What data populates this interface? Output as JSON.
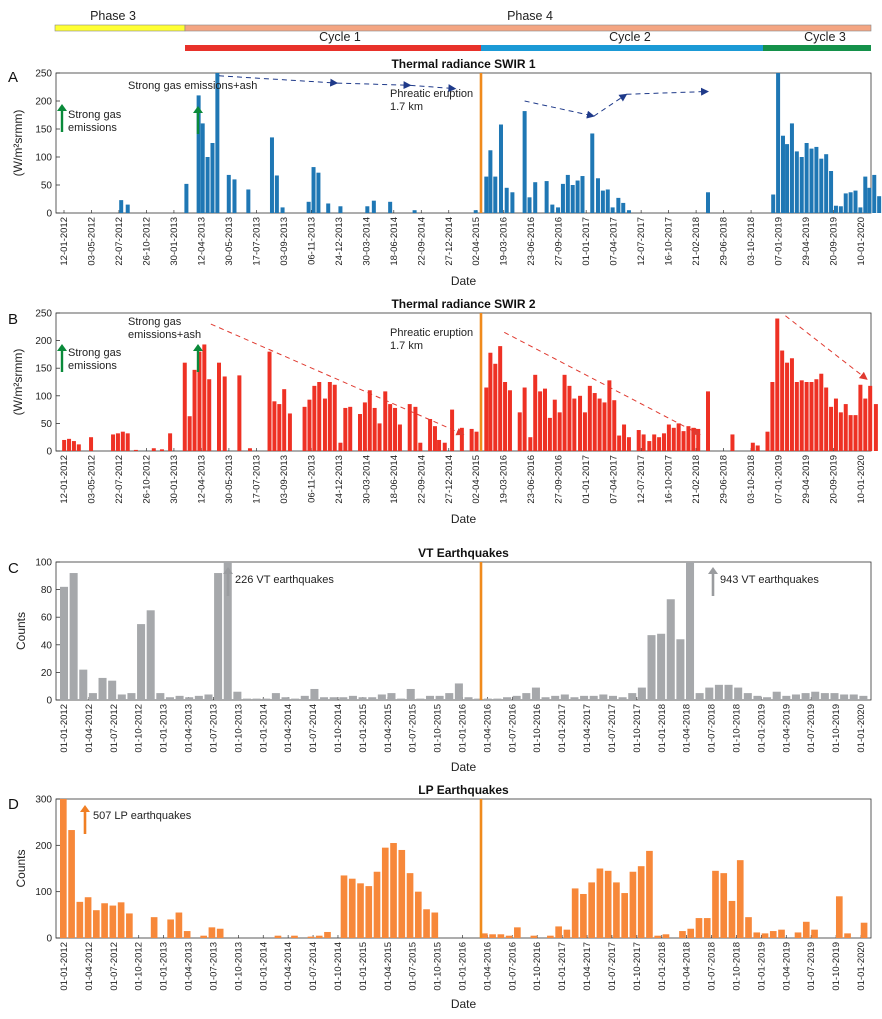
{
  "header": {
    "phases": [
      {
        "label": "Phase 3",
        "color": "#ffff33",
        "from": 0.0,
        "to": 0.155
      },
      {
        "label": "Phase 4",
        "color": "#f4a582",
        "from": 0.155,
        "to": 1.0
      }
    ],
    "cycles": [
      {
        "label": "Cycle 1",
        "color": "#e8312a",
        "from": 0.155,
        "to": 0.52
      },
      {
        "label": "Cycle 2",
        "color": "#1b9ad6",
        "from": 0.52,
        "to": 0.865
      },
      {
        "label": "Cycle 3",
        "color": "#14914a",
        "from": 0.865,
        "to": 1.0
      }
    ]
  },
  "eruption_line": {
    "color": "#f08a1c",
    "label": "Phreatic eruption",
    "label2": "1.7 km"
  },
  "chart_data": [
    {
      "panel": "A",
      "type": "bar",
      "title": "Thermal radiance SWIR 1",
      "xlabel": "Date",
      "ylabel": "(W/m²srmm)",
      "ylim": [
        0,
        250
      ],
      "yticks": [
        0,
        50,
        100,
        150,
        200,
        250
      ],
      "color": "#1f77b4",
      "eruption_position": 0.525,
      "xticks": [
        "12-01-2012",
        "03-05-2012",
        "22-07-2012",
        "26-10-2012",
        "30-01-2013",
        "12-04-2013",
        "30-05-2013",
        "17-07-2013",
        "03-09-2013",
        "06-11-2013",
        "24-12-2013",
        "30-03-2014",
        "18-06-2014",
        "22-09-2014",
        "27-12-2014",
        "02-04-2015",
        "19-03-2016",
        "23-06-2016",
        "27-09-2016",
        "01-01-2017",
        "07-04-2017",
        "12-07-2017",
        "16-10-2017",
        "21-02-2018",
        "29-06-2018",
        "03-10-2018",
        "07-01-2019",
        "29-04-2019",
        "20-09-2019",
        "10-01-2020"
      ],
      "bars": [
        [
          0.08,
          23
        ],
        [
          0.088,
          15
        ],
        [
          0.16,
          52
        ],
        [
          0.175,
          210
        ],
        [
          0.18,
          160
        ],
        [
          0.186,
          100
        ],
        [
          0.192,
          125
        ],
        [
          0.198,
          250
        ],
        [
          0.212,
          68
        ],
        [
          0.219,
          60
        ],
        [
          0.236,
          42
        ],
        [
          0.265,
          135
        ],
        [
          0.271,
          67
        ],
        [
          0.278,
          10
        ],
        [
          0.31,
          20
        ],
        [
          0.316,
          82
        ],
        [
          0.322,
          72
        ],
        [
          0.334,
          17
        ],
        [
          0.349,
          12
        ],
        [
          0.382,
          12
        ],
        [
          0.39,
          22
        ],
        [
          0.41,
          20
        ],
        [
          0.44,
          5
        ],
        [
          0.515,
          5
        ],
        [
          0.528,
          65
        ],
        [
          0.533,
          112
        ],
        [
          0.539,
          65
        ],
        [
          0.546,
          158
        ],
        [
          0.553,
          45
        ],
        [
          0.56,
          37
        ],
        [
          0.575,
          182
        ],
        [
          0.581,
          28
        ],
        [
          0.588,
          55
        ],
        [
          0.602,
          57
        ],
        [
          0.609,
          15
        ],
        [
          0.616,
          10
        ],
        [
          0.622,
          52
        ],
        [
          0.628,
          68
        ],
        [
          0.634,
          50
        ],
        [
          0.64,
          58
        ],
        [
          0.646,
          66
        ],
        [
          0.658,
          142
        ],
        [
          0.665,
          62
        ],
        [
          0.671,
          40
        ],
        [
          0.677,
          42
        ],
        [
          0.683,
          10
        ],
        [
          0.69,
          27
        ],
        [
          0.696,
          18
        ],
        [
          0.703,
          5
        ],
        [
          0.8,
          37
        ],
        [
          0.88,
          33
        ],
        [
          0.886,
          250
        ],
        [
          0.892,
          138
        ],
        [
          0.897,
          123
        ],
        [
          0.903,
          160
        ],
        [
          0.909,
          110
        ],
        [
          0.915,
          100
        ],
        [
          0.921,
          125
        ],
        [
          0.927,
          115
        ],
        [
          0.933,
          118
        ],
        [
          0.939,
          97
        ],
        [
          0.945,
          105
        ],
        [
          0.951,
          75
        ],
        [
          0.957,
          13
        ],
        [
          0.963,
          12
        ],
        [
          0.969,
          35
        ],
        [
          0.975,
          37
        ],
        [
          0.981,
          40
        ],
        [
          0.987,
          10
        ],
        [
          0.993,
          65
        ],
        [
          0.998,
          45
        ],
        [
          1.004,
          68
        ],
        [
          1.01,
          30
        ]
      ],
      "annotations": [
        {
          "text": "Strong gas",
          "text2": "emissions",
          "kind": "green-arrow"
        },
        {
          "text": "Strong gas emissions+ash",
          "kind": "green-arrow"
        }
      ],
      "trend_lines": [
        [
          [
            0.2,
            245
          ],
          [
            0.345,
            232
          ],
          [
            0.435,
            228
          ],
          [
            0.49,
            222
          ]
        ],
        [
          [
            0.575,
            200
          ],
          [
            0.66,
            173
          ],
          [
            0.7,
            212
          ],
          [
            0.8,
            217
          ]
        ]
      ]
    },
    {
      "panel": "B",
      "type": "bar",
      "title": "Thermal radiance SWIR 2",
      "xlabel": "Date",
      "ylabel": "(W/m²srmm)",
      "ylim": [
        0,
        250
      ],
      "yticks": [
        0,
        50,
        100,
        150,
        200,
        250
      ],
      "color": "#ee3124",
      "eruption_position": 0.525,
      "xticks": [
        "12-01-2012",
        "03-05-2012",
        "22-07-2012",
        "26-10-2012",
        "30-01-2013",
        "12-04-2013",
        "30-05-2013",
        "17-07-2013",
        "03-09-2013",
        "06-11-2013",
        "24-12-2013",
        "30-03-2014",
        "18-06-2014",
        "22-09-2014",
        "27-12-2014",
        "02-04-2015",
        "19-03-2016",
        "23-06-2016",
        "27-09-2016",
        "01-01-2017",
        "07-04-2017",
        "12-07-2017",
        "16-10-2017",
        "21-02-2018",
        "29-06-2018",
        "03-10-2018",
        "07-01-2019",
        "29-04-2019",
        "20-09-2019",
        "10-01-2020"
      ],
      "bars": [
        [
          0.01,
          20
        ],
        [
          0.016,
          22
        ],
        [
          0.022,
          18
        ],
        [
          0.028,
          12
        ],
        [
          0.043,
          25
        ],
        [
          0.07,
          30
        ],
        [
          0.076,
          32
        ],
        [
          0.082,
          35
        ],
        [
          0.088,
          32
        ],
        [
          0.098,
          2
        ],
        [
          0.12,
          5
        ],
        [
          0.13,
          3
        ],
        [
          0.14,
          32
        ],
        [
          0.158,
          160
        ],
        [
          0.164,
          63
        ],
        [
          0.17,
          147
        ],
        [
          0.176,
          180
        ],
        [
          0.182,
          193
        ],
        [
          0.188,
          130
        ],
        [
          0.2,
          160
        ],
        [
          0.207,
          135
        ],
        [
          0.225,
          137
        ],
        [
          0.238,
          5
        ],
        [
          0.262,
          180
        ],
        [
          0.268,
          90
        ],
        [
          0.274,
          85
        ],
        [
          0.28,
          112
        ],
        [
          0.287,
          68
        ],
        [
          0.305,
          80
        ],
        [
          0.311,
          93
        ],
        [
          0.317,
          118
        ],
        [
          0.323,
          125
        ],
        [
          0.33,
          95
        ],
        [
          0.336,
          125
        ],
        [
          0.342,
          120
        ],
        [
          0.349,
          15
        ],
        [
          0.355,
          78
        ],
        [
          0.361,
          80
        ],
        [
          0.373,
          67
        ],
        [
          0.379,
          88
        ],
        [
          0.385,
          110
        ],
        [
          0.391,
          78
        ],
        [
          0.397,
          50
        ],
        [
          0.404,
          108
        ],
        [
          0.41,
          85
        ],
        [
          0.416,
          78
        ],
        [
          0.422,
          48
        ],
        [
          0.434,
          85
        ],
        [
          0.441,
          80
        ],
        [
          0.447,
          15
        ],
        [
          0.459,
          58
        ],
        [
          0.465,
          45
        ],
        [
          0.47,
          20
        ],
        [
          0.477,
          15
        ],
        [
          0.486,
          75
        ],
        [
          0.498,
          42
        ],
        [
          0.51,
          40
        ],
        [
          0.516,
          35
        ],
        [
          0.528,
          115
        ],
        [
          0.533,
          178
        ],
        [
          0.539,
          158
        ],
        [
          0.545,
          190
        ],
        [
          0.551,
          125
        ],
        [
          0.557,
          110
        ],
        [
          0.569,
          70
        ],
        [
          0.575,
          115
        ],
        [
          0.582,
          25
        ],
        [
          0.588,
          138
        ],
        [
          0.594,
          108
        ],
        [
          0.6,
          113
        ],
        [
          0.606,
          60
        ],
        [
          0.612,
          93
        ],
        [
          0.618,
          70
        ],
        [
          0.624,
          138
        ],
        [
          0.63,
          118
        ],
        [
          0.636,
          95
        ],
        [
          0.643,
          100
        ],
        [
          0.649,
          70
        ],
        [
          0.655,
          118
        ],
        [
          0.661,
          105
        ],
        [
          0.667,
          95
        ],
        [
          0.673,
          88
        ],
        [
          0.679,
          128
        ],
        [
          0.685,
          92
        ],
        [
          0.691,
          28
        ],
        [
          0.697,
          48
        ],
        [
          0.703,
          25
        ],
        [
          0.715,
          38
        ],
        [
          0.721,
          30
        ],
        [
          0.728,
          18
        ],
        [
          0.734,
          30
        ],
        [
          0.74,
          25
        ],
        [
          0.746,
          32
        ],
        [
          0.752,
          48
        ],
        [
          0.758,
          42
        ],
        [
          0.764,
          50
        ],
        [
          0.77,
          36
        ],
        [
          0.776,
          45
        ],
        [
          0.782,
          42
        ],
        [
          0.788,
          40
        ],
        [
          0.8,
          108
        ],
        [
          0.83,
          30
        ],
        [
          0.855,
          15
        ],
        [
          0.861,
          10
        ],
        [
          0.873,
          35
        ],
        [
          0.879,
          125
        ],
        [
          0.885,
          240
        ],
        [
          0.891,
          182
        ],
        [
          0.897,
          160
        ],
        [
          0.903,
          168
        ],
        [
          0.909,
          125
        ],
        [
          0.915,
          128
        ],
        [
          0.921,
          125
        ],
        [
          0.927,
          125
        ],
        [
          0.933,
          130
        ],
        [
          0.939,
          140
        ],
        [
          0.945,
          115
        ],
        [
          0.951,
          80
        ],
        [
          0.957,
          95
        ],
        [
          0.963,
          70
        ],
        [
          0.969,
          85
        ],
        [
          0.975,
          65
        ],
        [
          0.981,
          65
        ],
        [
          0.987,
          120
        ],
        [
          0.993,
          95
        ],
        [
          0.999,
          118
        ],
        [
          1.006,
          85
        ]
      ],
      "annotations": [
        {
          "text": "Strong gas",
          "text2": "emissions",
          "kind": "green-arrow"
        },
        {
          "text": "Strong gas",
          "text2": "emissions+ash",
          "kind": "green-arrow"
        }
      ],
      "trend_lines": [
        [
          [
            0.19,
            230
          ],
          [
            0.5,
            30
          ]
        ],
        [
          [
            0.55,
            215
          ],
          [
            0.79,
            30
          ]
        ],
        [
          [
            0.895,
            245
          ],
          [
            0.995,
            130
          ]
        ]
      ]
    },
    {
      "panel": "C",
      "type": "bar",
      "title": "VT Earthquakes",
      "xlabel": "Date",
      "ylabel": "Counts",
      "ylim": [
        0,
        100
      ],
      "yticks": [
        0,
        20,
        40,
        60,
        80,
        100
      ],
      "color": "#a6a8ab",
      "eruption_position": 0.515,
      "xticks": [
        "01-01-2012",
        "01-04-2012",
        "01-07-2012",
        "01-10-2012",
        "01-01-2013",
        "01-04-2013",
        "01-07-2013",
        "01-10-2013",
        "01-01-2014",
        "01-04-2014",
        "01-07-2014",
        "01-10-2014",
        "01-01-2015",
        "01-04-2015",
        "01-07-2015",
        "01-10-2015",
        "01-01-2016",
        "01-04-2016",
        "01-07-2016",
        "01-10-2016",
        "01-01-2017",
        "01-04-2017",
        "01-07-2017",
        "01-10-2017",
        "01-01-2018",
        "01-04-2018",
        "01-07-2018",
        "01-10-2018",
        "01-01-2019",
        "01-04-2019",
        "01-07-2019",
        "01-10-2019",
        "01-01-2020"
      ],
      "bars": [
        82,
        92,
        22,
        5,
        16,
        14,
        4,
        5,
        55,
        65,
        5,
        2,
        3,
        2,
        3,
        4,
        92,
        100,
        6,
        1,
        1,
        1,
        5,
        2,
        1,
        3,
        8,
        2,
        2,
        2,
        3,
        2,
        2,
        4,
        5,
        1,
        8,
        1,
        3,
        3,
        5,
        12,
        2,
        1,
        1,
        1,
        2,
        3,
        5,
        9,
        2,
        3,
        4,
        2,
        3,
        3,
        4,
        3,
        2,
        5,
        9,
        47,
        48,
        73,
        44,
        100,
        5,
        9,
        11,
        11,
        9,
        5,
        3,
        2,
        6,
        3,
        4,
        5,
        6,
        5,
        5,
        4,
        4,
        3
      ],
      "annotations": [
        {
          "text": "226 VT earthquakes",
          "kind": "gray-arrow"
        },
        {
          "text": "943 VT earthquakes",
          "kind": "gray-arrow"
        }
      ]
    },
    {
      "panel": "D",
      "type": "bar",
      "title": "LP Earthquakes",
      "xlabel": "Date",
      "ylabel": "Counts",
      "ylim": [
        0,
        300
      ],
      "yticks": [
        0,
        100,
        200,
        300
      ],
      "color": "#f7883a",
      "eruption_position": 0.515,
      "xticks": [
        "01-01-2012",
        "01-04-2012",
        "01-07-2012",
        "01-10-2012",
        "01-01-2013",
        "01-04-2013",
        "01-07-2013",
        "01-10-2013",
        "01-01-2014",
        "01-04-2014",
        "01-07-2014",
        "01-10-2014",
        "01-01-2015",
        "01-04-2015",
        "01-07-2015",
        "01-10-2015",
        "01-01-2016",
        "01-04-2016",
        "01-07-2016",
        "01-10-2016",
        "01-01-2017",
        "01-04-2017",
        "01-07-2017",
        "01-10-2017",
        "01-01-2018",
        "01-04-2018",
        "01-07-2018",
        "01-10-2018",
        "01-01-2019",
        "01-04-2019",
        "01-07-2019",
        "01-10-2019",
        "01-01-2020"
      ],
      "bars": [
        300,
        233,
        78,
        88,
        60,
        75,
        70,
        77,
        53,
        0,
        0,
        45,
        0,
        40,
        55,
        15,
        0,
        5,
        23,
        20,
        0,
        0,
        0,
        0,
        0,
        0,
        5,
        0,
        5,
        0,
        3,
        5,
        13,
        0,
        135,
        128,
        118,
        112,
        143,
        195,
        205,
        190,
        140,
        100,
        62,
        55,
        0,
        0,
        0,
        0,
        0,
        10,
        8,
        8,
        5,
        23,
        0,
        5,
        0,
        5,
        25,
        18,
        107,
        95,
        120,
        150,
        145,
        120,
        97,
        143,
        155,
        188,
        5,
        8,
        0,
        15,
        20,
        43,
        43,
        145,
        140,
        80,
        168,
        45,
        12,
        10,
        15,
        18,
        0,
        12,
        35,
        18,
        0,
        0,
        90,
        10,
        0,
        33
      ],
      "annotations": [
        {
          "text": "507 LP earthquakes",
          "kind": "orange-arrow"
        }
      ]
    }
  ]
}
